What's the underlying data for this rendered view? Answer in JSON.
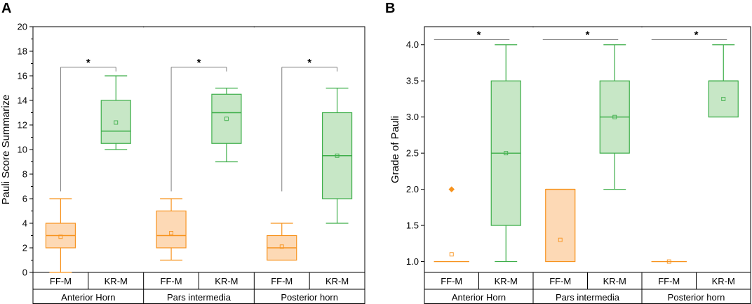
{
  "colors": {
    "ff": "#F7931E",
    "ff_fill": "#FDD9B5",
    "kr": "#3DAE49",
    "kr_fill": "#C7E7C6",
    "axis": "#000000",
    "bracket": "#808080"
  },
  "chart_data": [
    {
      "type": "box",
      "panel_label": "A",
      "ylabel": "Pauli Score Summarize",
      "ylim": [
        0,
        20
      ],
      "yticks": [
        "0",
        "2",
        "4",
        "6",
        "8",
        "10",
        "12",
        "14",
        "16",
        "18",
        "20"
      ],
      "groups": [
        "Anterior Horn",
        "Pars intermedia",
        "Posterior horn"
      ],
      "categories": [
        "FF-M",
        "KR-M",
        "FF-M",
        "KR-M",
        "FF-M",
        "KR-M"
      ],
      "boxes": [
        {
          "series": "FF-M",
          "min": 0,
          "q1": 2,
          "median": 3,
          "q3": 4,
          "max": 6,
          "mean": 2.9
        },
        {
          "series": "KR-M",
          "min": 10,
          "q1": 10.5,
          "median": 11.5,
          "q3": 14,
          "max": 16,
          "mean": 12.2
        },
        {
          "series": "FF-M",
          "min": 1,
          "q1": 2,
          "median": 3,
          "q3": 5,
          "max": 6,
          "mean": 3.2
        },
        {
          "series": "KR-M",
          "min": 9,
          "q1": 10.5,
          "median": 13,
          "q3": 14.5,
          "max": 15,
          "mean": 12.5
        },
        {
          "series": "FF-M",
          "min": 1,
          "q1": 1,
          "median": 2,
          "q3": 3,
          "max": 4,
          "mean": 2.1
        },
        {
          "series": "KR-M",
          "min": 4,
          "q1": 6,
          "median": 9.5,
          "q3": 13,
          "max": 15,
          "mean": 9.5
        }
      ],
      "outliers": [],
      "annotations": [
        {
          "text": "*",
          "from": 0,
          "to": 1,
          "y": 16.7,
          "left_drop_to": 6.6
        },
        {
          "text": "*",
          "from": 2,
          "to": 3,
          "y": 16.7,
          "left_drop_to": 6.6
        },
        {
          "text": "*",
          "from": 4,
          "to": 5,
          "y": 16.7,
          "left_drop_to": 6.6
        }
      ]
    },
    {
      "type": "box",
      "panel_label": "B",
      "ylabel": "Grade of Pauli",
      "ylim": [
        0.85,
        4.25
      ],
      "yticks": [
        "1.0",
        "1.5",
        "2.0",
        "2.5",
        "3.0",
        "3.5",
        "4.0"
      ],
      "groups": [
        "Anterior Horn",
        "Pars intermedia",
        "Posterior horn"
      ],
      "categories": [
        "FF-M",
        "KR-M",
        "FF-M",
        "KR-M",
        "FF-M",
        "KR-M"
      ],
      "boxes": [
        {
          "series": "FF-M",
          "min": 1,
          "q1": 1,
          "median": 1,
          "q3": 1,
          "max": 1,
          "mean": 1.1
        },
        {
          "series": "KR-M",
          "min": 1,
          "q1": 1.5,
          "median": 2.5,
          "q3": 3.5,
          "max": 4,
          "mean": 2.5
        },
        {
          "series": "FF-M",
          "min": 1,
          "q1": 1,
          "median": 2,
          "q3": 2,
          "max": 2,
          "mean": 1.3
        },
        {
          "series": "KR-M",
          "min": 2,
          "q1": 2.5,
          "median": 3,
          "q3": 3.5,
          "max": 4,
          "mean": 3.0
        },
        {
          "series": "FF-M",
          "min": 1,
          "q1": 1,
          "median": 1,
          "q3": 1,
          "max": 1,
          "mean": 1.0
        },
        {
          "series": "KR-M",
          "min": 3,
          "q1": 3,
          "median": 3.5,
          "q3": 3.5,
          "max": 4,
          "mean": 3.25
        }
      ],
      "outliers": [
        {
          "box": 0,
          "value": 2.0
        }
      ],
      "annotations": [
        {
          "text": "*",
          "from": 0,
          "to": 1,
          "y": 4.07
        },
        {
          "text": "*",
          "from": 2,
          "to": 3,
          "y": 4.07
        },
        {
          "text": "*",
          "from": 4,
          "to": 5,
          "y": 4.07
        }
      ]
    }
  ]
}
